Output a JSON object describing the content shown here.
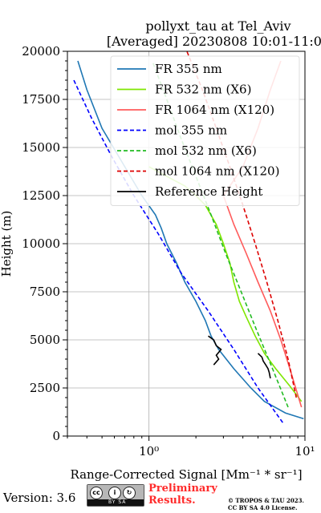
{
  "chart_data": {
    "type": "line",
    "title": "pollyxt_tau at Tel_Aviv",
    "subtitle": "[Averaged] 20230808 10:01-11:00",
    "xlabel": "Range-Corrected Signal [Mm⁻¹ * sr⁻¹]",
    "ylabel": "Height (m)",
    "xscale": "log",
    "xlim": [
      0.3,
      10
    ],
    "ylim": [
      0,
      20000
    ],
    "xticks": [
      {
        "value": 1,
        "label": "10⁰"
      },
      {
        "value": 10,
        "label": "10¹"
      }
    ],
    "yticks": [
      0,
      2500,
      5000,
      7500,
      10000,
      12500,
      15000,
      17500,
      20000
    ],
    "ytick_labels": [
      "0",
      "2500",
      "5000",
      "7500",
      "10000",
      "12500",
      "15000",
      "17500",
      "20000"
    ],
    "grid": true,
    "legend_position": "top-right",
    "series": [
      {
        "name": "FR 355 nm",
        "color": "#1f77b4",
        "style": "solid",
        "points": [
          [
            9.8,
            900
          ],
          [
            7.5,
            1200
          ],
          [
            5.5,
            1800
          ],
          [
            4.5,
            2500
          ],
          [
            3.5,
            3500
          ],
          [
            2.8,
            4500
          ],
          [
            2.5,
            5200
          ],
          [
            2.3,
            6000
          ],
          [
            2.0,
            7000
          ],
          [
            1.7,
            8000
          ],
          [
            1.5,
            9000
          ],
          [
            1.3,
            10000
          ],
          [
            1.2,
            10800
          ],
          [
            1.1,
            11500
          ],
          [
            0.9,
            12500
          ],
          [
            0.7,
            14000
          ],
          [
            0.5,
            16000
          ],
          [
            0.4,
            18000
          ],
          [
            0.35,
            19500
          ]
        ]
      },
      {
        "name": "FR 532 nm (X6)",
        "color": "#7fe600",
        "style": "solid",
        "points": [
          [
            9.5,
            1800
          ],
          [
            8.0,
            2600
          ],
          [
            6.5,
            3500
          ],
          [
            5.5,
            4300
          ],
          [
            4.8,
            5200
          ],
          [
            4.2,
            6200
          ],
          [
            3.8,
            7000
          ],
          [
            3.5,
            8000
          ],
          [
            3.3,
            9000
          ],
          [
            3.0,
            10000
          ],
          [
            2.7,
            11000
          ],
          [
            2.3,
            12000
          ],
          [
            2.0,
            12500
          ],
          [
            1.7,
            13000
          ],
          [
            1.3,
            13500
          ],
          [
            1.0,
            14000
          ]
        ]
      },
      {
        "name": "FR 1064 nm (X120)",
        "color": "#ff5b5b",
        "style": "solid",
        "points": [
          [
            9.5,
            1500
          ],
          [
            8.0,
            3500
          ],
          [
            7.0,
            5000
          ],
          [
            6.0,
            6500
          ],
          [
            5.0,
            8000
          ],
          [
            4.2,
            9500
          ],
          [
            3.5,
            11000
          ],
          [
            3.0,
            12500
          ],
          [
            4.0,
            14000
          ],
          [
            5.0,
            16000
          ],
          [
            6.0,
            18000
          ],
          [
            7.0,
            19500
          ]
        ]
      },
      {
        "name": "mol 355 nm",
        "color": "#0000ff",
        "style": "dashed",
        "points": [
          [
            7.2,
            700
          ],
          [
            5.0,
            2500
          ],
          [
            3.5,
            4500
          ],
          [
            2.4,
            6500
          ],
          [
            1.6,
            8500
          ],
          [
            1.15,
            10500
          ],
          [
            0.8,
            12500
          ],
          [
            0.58,
            14500
          ],
          [
            0.43,
            16500
          ],
          [
            0.33,
            18500
          ]
        ]
      },
      {
        "name": "mol 532 nm (X6)",
        "color": "#22bb22",
        "style": "dashed",
        "points": [
          [
            7.8,
            1500
          ],
          [
            6.2,
            3500
          ],
          [
            4.9,
            5500
          ],
          [
            3.9,
            7500
          ],
          [
            3.1,
            9500
          ],
          [
            2.5,
            11500
          ],
          [
            2.0,
            13500
          ],
          [
            1.6,
            15500
          ],
          [
            1.3,
            17500
          ],
          [
            1.05,
            19500
          ]
        ]
      },
      {
        "name": "mol 1064 nm (X120)",
        "color": "#dd0000",
        "style": "dashed",
        "points": [
          [
            8.8,
            2000
          ],
          [
            7.8,
            4000
          ],
          [
            6.7,
            6000
          ],
          [
            5.7,
            8000
          ],
          [
            4.8,
            10000
          ],
          [
            4.0,
            12000
          ],
          [
            3.3,
            14000
          ],
          [
            2.7,
            16000
          ],
          [
            2.2,
            18000
          ],
          [
            1.75,
            20000
          ]
        ]
      },
      {
        "name": "Reference Height",
        "color": "#000000",
        "style": "solid",
        "points": [
          [
            2.4,
            5200
          ],
          [
            2.6,
            5000
          ],
          [
            2.7,
            4700
          ],
          [
            2.9,
            4500
          ],
          [
            2.7,
            4200
          ],
          [
            2.8,
            4000
          ],
          [
            2.6,
            3700
          ]
        ]
      },
      {
        "name": "",
        "color": "#000000",
        "style": "solid",
        "points": [
          [
            5.0,
            4300
          ],
          [
            5.3,
            4100
          ],
          [
            5.4,
            3900
          ],
          [
            5.6,
            3700
          ],
          [
            5.8,
            3500
          ],
          [
            5.9,
            3300
          ],
          [
            6.0,
            3000
          ]
        ]
      }
    ]
  },
  "footer": {
    "version": "Version: 3.6",
    "cc_label": "BY  SA",
    "preliminary_line1": "Preliminary",
    "preliminary_line2": "Results.",
    "copyright_line1": "© TROPOS & TAU 2023.",
    "copyright_line2": "CC BY SA 4.0 License."
  }
}
